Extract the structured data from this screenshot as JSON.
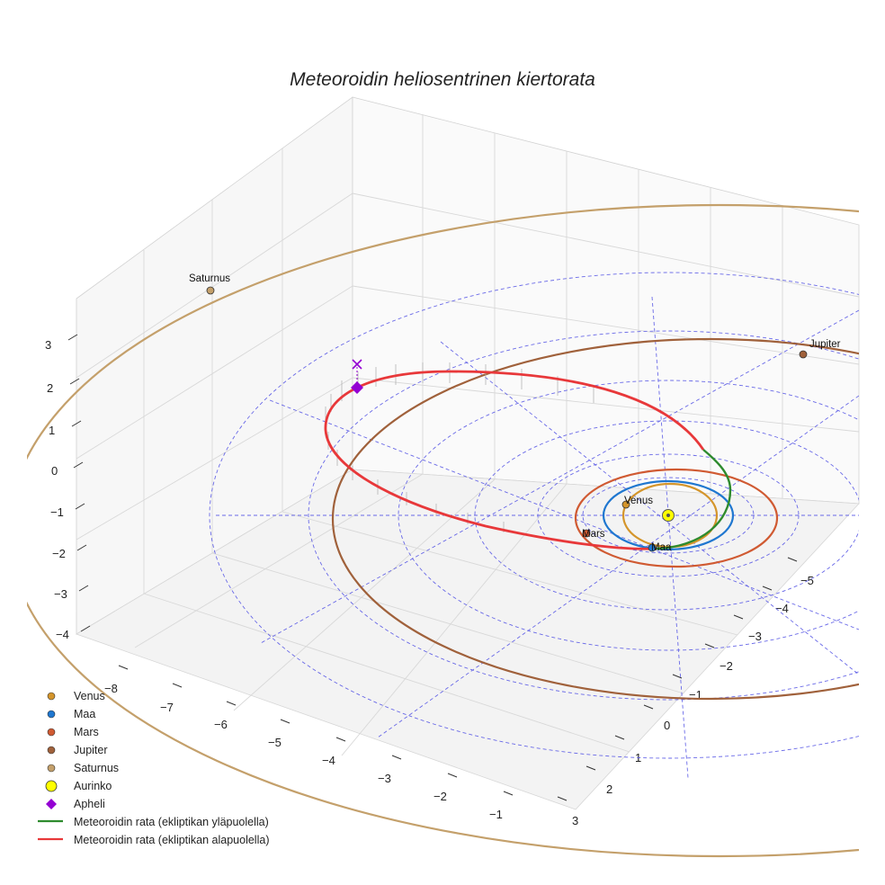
{
  "chart_data": {
    "type": "3d-line",
    "title": "Meteoroidin heliosentrinen kiertorata",
    "x_ticks": [
      "−8",
      "−7",
      "−6",
      "−5",
      "−4",
      "−3",
      "−2",
      "−1"
    ],
    "y_ticks": [
      "3",
      "2",
      "1",
      "0",
      "−1",
      "−2",
      "−3",
      "−4",
      "−5"
    ],
    "z_ticks": [
      "3",
      "2",
      "1",
      "0",
      "−1",
      "−2",
      "−3",
      "−4"
    ],
    "planets": [
      {
        "name": "Venus",
        "label": "Venus",
        "orbit_radius_au": 0.72,
        "color": "#d4952b"
      },
      {
        "name": "Maa",
        "label": "Maa",
        "orbit_radius_au": 1.0,
        "color": "#1f77d0"
      },
      {
        "name": "Mars",
        "label": "Mars",
        "orbit_radius_au": 1.52,
        "color": "#d05a32"
      },
      {
        "name": "Jupiter",
        "label": "Jupiter",
        "orbit_radius_au": 5.2,
        "color": "#a0613b"
      },
      {
        "name": "Saturnus",
        "label": "Saturnus",
        "orbit_radius_au": 9.54,
        "color": "#c4a06b"
      }
    ],
    "sun": {
      "name": "Aurinko",
      "color": "#ffff00"
    },
    "aphelion": {
      "name": "Apheli",
      "color": "#9400d3"
    },
    "meteoroid": {
      "above_label": "Meteoroidin rata (ekliptikan yläpuolella)",
      "below_label": "Meteoroidin rata (ekliptikan alapuolella)",
      "above_color": "#2e8b2e",
      "below_color": "#e8383a"
    },
    "legend": [
      {
        "label": "Venus",
        "kind": "dot",
        "color": "#d4952b"
      },
      {
        "label": "Maa",
        "kind": "dot",
        "color": "#1f77d0"
      },
      {
        "label": "Mars",
        "kind": "dot",
        "color": "#d05a32"
      },
      {
        "label": "Jupiter",
        "kind": "dot",
        "color": "#a0613b"
      },
      {
        "label": "Saturnus",
        "kind": "dot",
        "color": "#c4a06b"
      },
      {
        "label": "Aurinko",
        "kind": "sun",
        "color": "#ffff00"
      },
      {
        "label": "Apheli",
        "kind": "diamond",
        "color": "#9400d3"
      },
      {
        "label": "Meteoroidin rata (ekliptikan yläpuolella)",
        "kind": "line",
        "color": "#2e8b2e"
      },
      {
        "label": "Meteoroidin rata (ekliptikan alapuolella)",
        "kind": "line",
        "color": "#e8383a"
      }
    ],
    "legend_position": "bottom-left",
    "grid": true
  }
}
